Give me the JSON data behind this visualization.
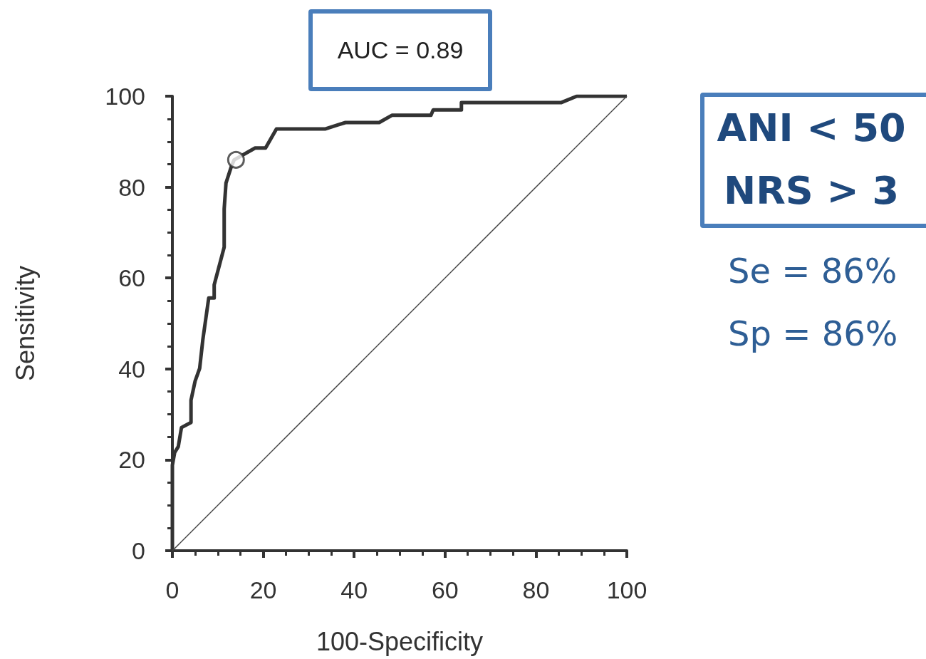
{
  "chart_data": {
    "type": "line",
    "title": "AUC = 0.89",
    "xlabel": "100-Specificity",
    "ylabel": "Sensitivity",
    "xlim": [
      0,
      100
    ],
    "xticks": [
      0,
      20,
      40,
      60,
      80,
      100
    ],
    "ylim": [
      0,
      100
    ],
    "yticks": [
      0,
      20,
      40,
      60,
      80,
      100
    ],
    "grid": false,
    "series": [
      {
        "color": "#333333",
        "x": [
          0,
          0,
          0.5,
          1.3,
          2,
          4.1,
          4.1,
          5,
          6,
          6.7,
          8,
          9.2,
          9.2,
          11.4,
          11.4,
          11.8,
          13,
          13.6,
          18.2,
          20.5,
          22.9,
          33.7,
          36.5,
          38.1,
          45.5,
          48.3,
          56.9,
          57.4,
          63.6,
          63.6,
          85.6,
          89,
          100
        ],
        "values": [
          0,
          18.8,
          21.6,
          22.9,
          27.1,
          28.2,
          33.1,
          37.3,
          40.1,
          46.4,
          55.6,
          55.6,
          58.5,
          66.8,
          75.2,
          80.9,
          84.6,
          86,
          88.6,
          88.6,
          92.8,
          92.8,
          93.7,
          94.2,
          94.2,
          95.8,
          95.8,
          97,
          97,
          98.6,
          98.6,
          100,
          100
        ]
      },
      {
        "color": "#444444",
        "x": [
          0,
          100
        ],
        "values": [
          0,
          100
        ]
      },
      {
        "type": "scatter",
        "marker": "circle",
        "color": "#333333",
        "x": [
          14
        ],
        "values": [
          86
        ]
      }
    ],
    "annotations": [
      "ANI < 50",
      "NRS > 3",
      "Se = 86%",
      "Sp = 86%"
    ]
  }
}
